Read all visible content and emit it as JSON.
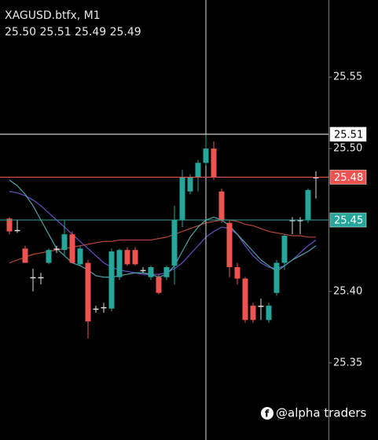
{
  "chart_data": {
    "type": "candlestick",
    "title": "XAGUSD.btfx, M1",
    "subtitle": "25.50 25.51 25.49 25.49",
    "watermark": "@alpha traders",
    "ylim": [
      25.296,
      25.604
    ],
    "yticks": [
      25.35,
      {
        "value": 25.4,
        "label": "25.40"
      },
      {
        "value": 25.5,
        "label": "25.50"
      },
      25.55
    ],
    "grid": false,
    "up_color": "#26a69a",
    "down_color": "#ef5350",
    "flat_color": "#dddddd",
    "open": [
      25.451,
      25.443,
      25.43,
      25.41,
      25.41,
      25.42,
      25.43,
      25.429,
      25.44,
      25.419,
      25.42,
      25.388,
      25.389,
      25.388,
      25.41,
      25.429,
      25.429,
      25.415,
      25.41,
      25.41,
      25.41,
      25.418,
      25.45,
      25.47,
      25.48,
      25.49,
      25.5,
      25.47,
      25.448,
      25.417,
      25.409,
      25.39,
      25.39,
      25.38,
      25.399,
      25.42,
      25.45,
      25.45,
      25.45,
      25.48
    ],
    "high": [
      25.452,
      25.45,
      25.432,
      25.416,
      25.413,
      25.43,
      25.432,
      25.45,
      25.442,
      25.432,
      25.422,
      25.39,
      25.392,
      25.43,
      25.43,
      25.431,
      25.431,
      25.417,
      25.418,
      25.412,
      25.418,
      25.46,
      25.485,
      25.482,
      25.492,
      25.51,
      25.505,
      25.472,
      25.45,
      25.42,
      25.41,
      25.392,
      25.395,
      25.392,
      25.422,
      25.44,
      25.452,
      25.452,
      25.472,
      25.484
    ],
    "low": [
      25.44,
      25.441,
      25.42,
      25.4,
      25.405,
      25.419,
      25.427,
      25.425,
      25.42,
      25.418,
      25.367,
      25.385,
      25.385,
      25.386,
      25.408,
      25.418,
      25.418,
      25.413,
      25.408,
      25.398,
      25.408,
      25.405,
      25.445,
      25.468,
      25.47,
      25.488,
      25.478,
      25.448,
      25.41,
      25.405,
      25.378,
      25.378,
      25.38,
      25.378,
      25.397,
      25.415,
      25.44,
      25.44,
      25.448,
      25.465
    ],
    "close": [
      25.442,
      25.443,
      25.42,
      25.41,
      25.41,
      25.429,
      25.43,
      25.44,
      25.42,
      25.43,
      25.379,
      25.388,
      25.389,
      25.428,
      25.429,
      25.419,
      25.419,
      25.415,
      25.417,
      25.399,
      25.417,
      25.45,
      25.48,
      25.48,
      25.49,
      25.5,
      25.48,
      25.45,
      25.417,
      25.409,
      25.38,
      25.38,
      25.39,
      25.39,
      25.42,
      25.439,
      25.45,
      25.45,
      25.471,
      25.48
    ],
    "lines": [
      {
        "color": "#b5453a",
        "values": [
          25.42,
          25.422,
          25.424,
          25.426,
          25.427,
          25.428,
          25.429,
          25.43,
          25.431,
          25.432,
          25.433,
          25.434,
          25.435,
          25.435,
          25.436,
          25.436,
          25.436,
          25.436,
          25.436,
          25.437,
          25.438,
          25.44,
          25.442,
          25.444,
          25.446,
          25.448,
          25.449,
          25.45,
          25.45,
          25.449,
          25.447,
          25.446,
          25.444,
          25.442,
          25.441,
          25.44,
          25.439,
          25.439,
          25.438,
          25.438
        ]
      },
      {
        "color": "#6a4fc4",
        "values": [
          25.47,
          25.469,
          25.467,
          25.464,
          25.46,
          25.455,
          25.45,
          25.445,
          25.44,
          25.435,
          25.43,
          25.425,
          25.42,
          25.417,
          25.415,
          25.414,
          25.413,
          25.412,
          25.412,
          25.412,
          25.413,
          25.416,
          25.42,
          25.426,
          25.432,
          25.438,
          25.442,
          25.445,
          25.444,
          25.44,
          25.432,
          25.425,
          25.42,
          25.417,
          25.416,
          25.418,
          25.422,
          25.427,
          25.432,
          25.436
        ]
      },
      {
        "color": "#4fa3a8",
        "values": [
          25.478,
          25.474,
          25.468,
          25.46,
          25.45,
          25.44,
          25.43,
          25.425,
          25.42,
          25.418,
          25.415,
          25.411,
          25.41,
          25.41,
          25.411,
          25.412,
          25.413,
          25.413,
          25.412,
          25.41,
          25.412,
          25.418,
          25.428,
          25.438,
          25.445,
          25.45,
          25.452,
          25.45,
          25.446,
          25.44,
          25.434,
          25.428,
          25.422,
          25.418,
          25.414,
          25.418,
          25.422,
          25.425,
          25.428,
          25.432
        ]
      }
    ],
    "levels": [
      {
        "price": 25.51,
        "color": "#ffffff",
        "text_color": "#000000"
      },
      {
        "price": 25.48,
        "color": "#ef5350",
        "text_color": "#ffffff"
      },
      {
        "price": 25.45,
        "color": "#26a69a",
        "text_color": "#ffffff"
      }
    ]
  }
}
